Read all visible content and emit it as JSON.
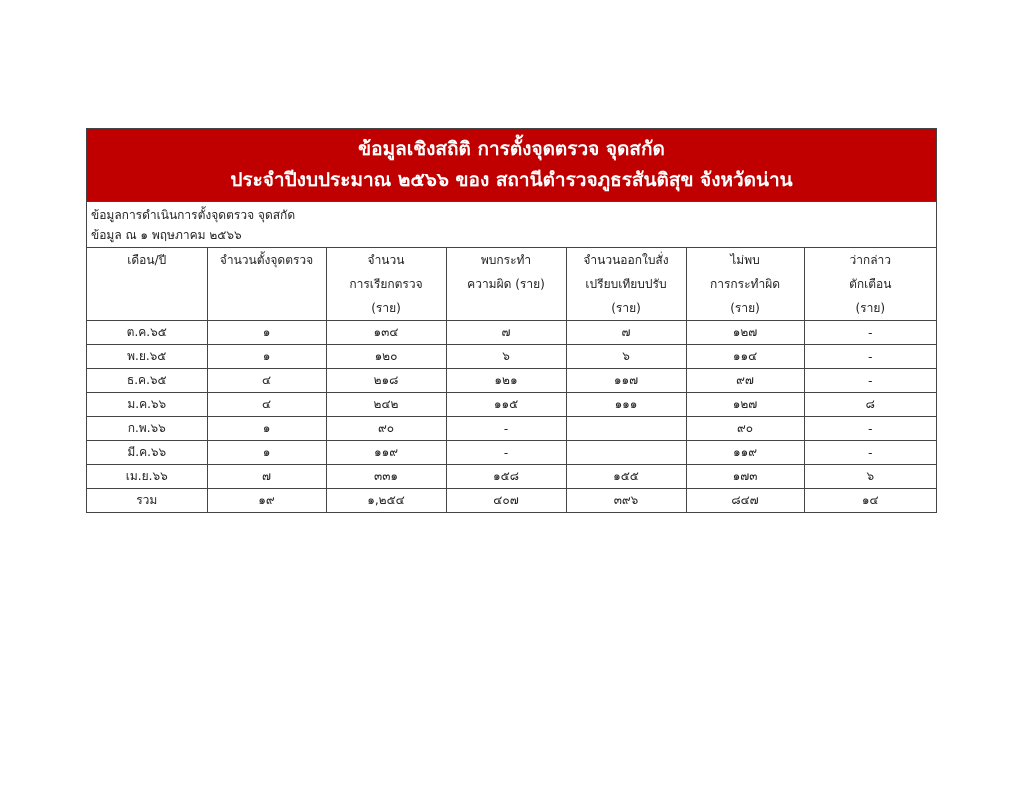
{
  "title": {
    "line1": "ข้อมูลเชิงสถิติ การตั้งจุดตรวจ จุดสกัด",
    "line2": "ประจำปีงบประมาณ ๒๕๖๖ ของ สถานีตำรวจภูธรสันติสุข จังหวัดน่าน"
  },
  "info": {
    "line1": "ข้อมูลการดำเนินการตั้งจุดตรวจ จุดสกัด",
    "line2": "ข้อมูล ณ ๑ พฤษภาคม ๒๕๖๖"
  },
  "table": {
    "headers": [
      [
        "เดือน/ปี"
      ],
      [
        "จำนวนตั้งจุดตรวจ"
      ],
      [
        "จำนวน",
        "การเรียกตรวจ",
        "(ราย)"
      ],
      [
        "พบกระทำ",
        "ความผิด (ราย)"
      ],
      [
        "จำนวนออกใบสั่ง",
        "เปรียบเทียบปรับ",
        "(ราย)"
      ],
      [
        "ไม่พบ",
        "การกระทำผิด",
        "(ราย)"
      ],
      [
        "ว่ากล่าว",
        "ตักเตือน",
        "(ราย)"
      ]
    ],
    "rows": [
      [
        "ต.ค.๖๕",
        "๑",
        "๑๓๔",
        "๗",
        "๗",
        "๑๒๗",
        "-"
      ],
      [
        "พ.ย.๖๕",
        "๑",
        "๑๒๐",
        "๖",
        "๖",
        "๑๑๔",
        "-"
      ],
      [
        "ธ.ค.๖๕",
        "๔",
        "๒๑๘",
        "๑๒๑",
        "๑๑๗",
        "๙๗",
        "-"
      ],
      [
        "ม.ค.๖๖",
        "๔",
        "๒๔๒",
        "๑๑๕",
        "๑๑๑",
        "๑๒๗",
        "๘"
      ],
      [
        "ก.พ.๖๖",
        "๑",
        "๙๐",
        "-",
        "",
        "๙๐",
        "-"
      ],
      [
        "มี.ค.๖๖",
        "๑",
        "๑๑๙",
        "-",
        "",
        "๑๑๙",
        "-"
      ],
      [
        "เม.ย.๖๖",
        "๗",
        "๓๓๑",
        "๑๕๘",
        "๑๕๕",
        "๑๗๓",
        "๖"
      ],
      [
        "รวม",
        "๑๙",
        "๑,๒๕๔",
        "๔๐๗",
        "๓๙๖",
        "๘๔๗",
        "๑๔"
      ]
    ]
  },
  "colors": {
    "title_bg": "#c00000",
    "title_text": "#ffffff"
  }
}
